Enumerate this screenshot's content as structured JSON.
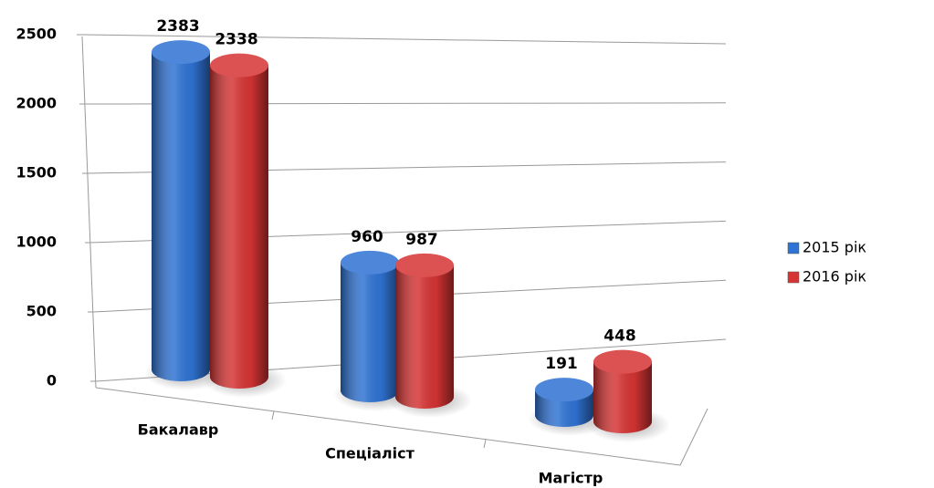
{
  "chart_data": {
    "type": "bar3d",
    "categories": [
      "Бакалавр",
      "Спеціаліст",
      "Магістр"
    ],
    "series": [
      {
        "name": "2015 рік",
        "color": "#2f73d4",
        "values": [
          2383,
          960,
          191
        ]
      },
      {
        "name": "2016 рік",
        "color": "#d63434",
        "values": [
          2338,
          987,
          448
        ]
      }
    ],
    "ylim": [
      0,
      2500
    ],
    "yticks": [
      0,
      500,
      1000,
      1500,
      2000,
      2500
    ],
    "grid": true,
    "legend": "right"
  }
}
